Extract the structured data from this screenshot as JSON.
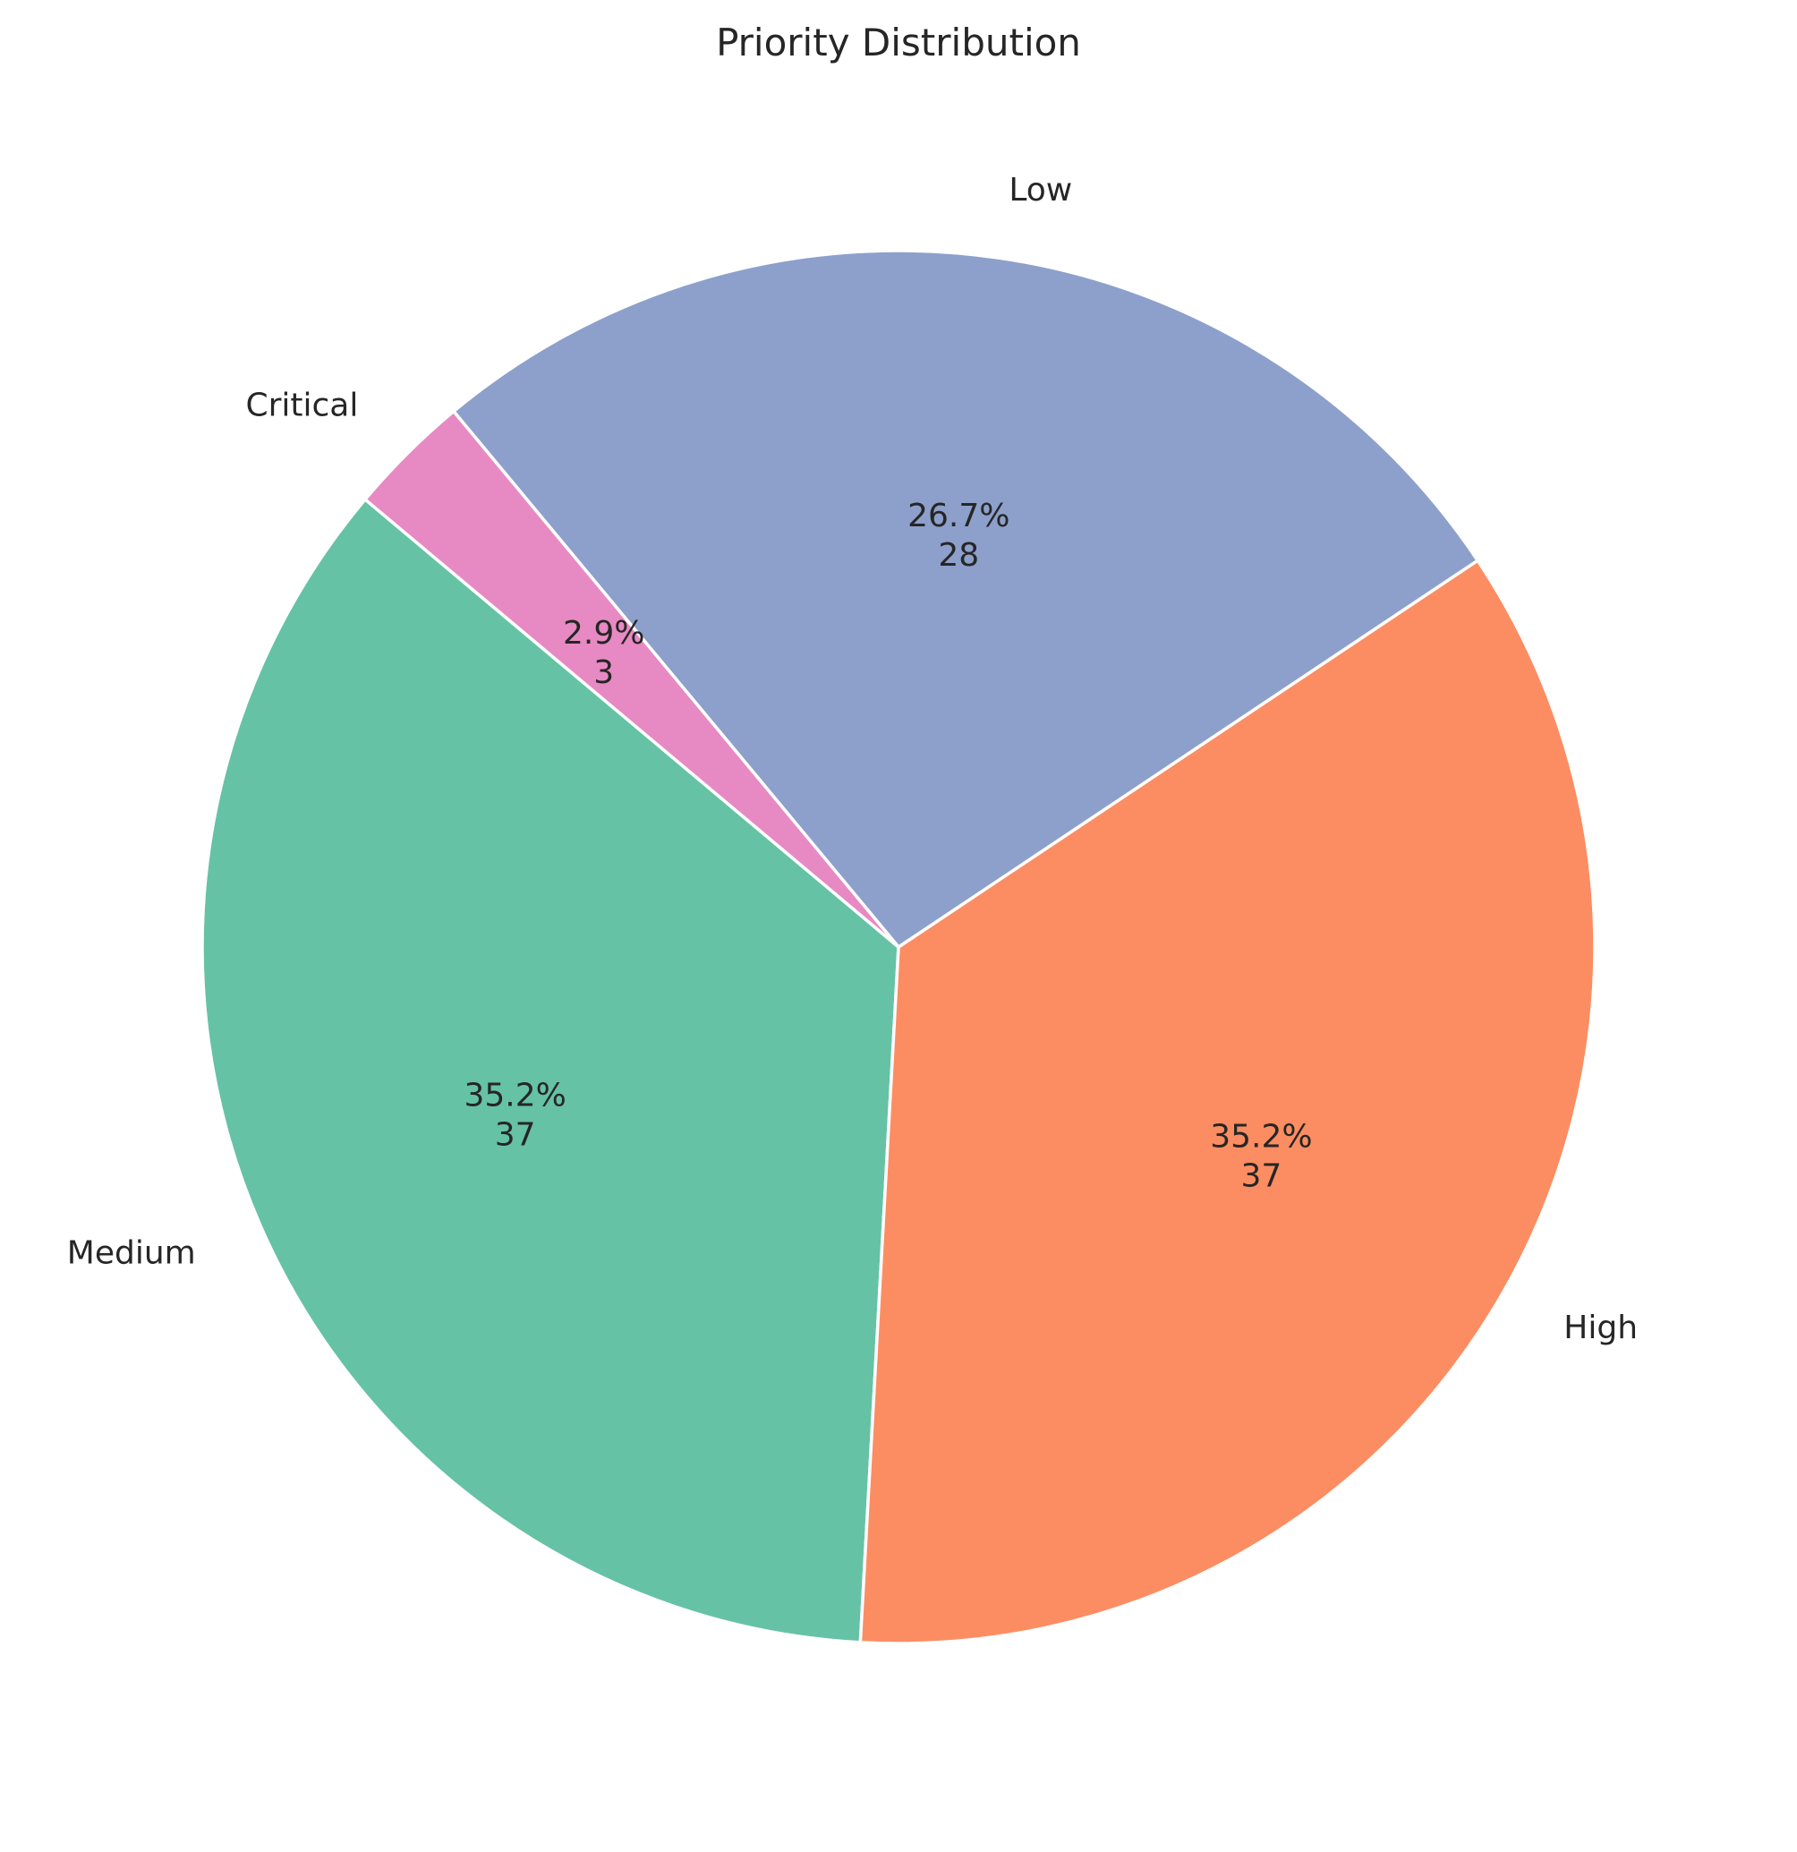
{
  "chart_data": {
    "type": "pie",
    "title": "Priority Distribution",
    "start_angle_deg": 140,
    "direction": "counterclockwise",
    "slices": [
      {
        "label": "Medium",
        "value": 37,
        "percent_label": "35.2%",
        "count_label": "37",
        "color": "#66c2a5"
      },
      {
        "label": "High",
        "value": 37,
        "percent_label": "35.2%",
        "count_label": "37",
        "color": "#fc8d62"
      },
      {
        "label": "Low",
        "value": 28,
        "percent_label": "26.7%",
        "count_label": "28",
        "color": "#8da0cb"
      },
      {
        "label": "Critical",
        "value": 3,
        "percent_label": "2.9%",
        "count_label": "3",
        "color": "#e78ac3"
      }
    ]
  }
}
